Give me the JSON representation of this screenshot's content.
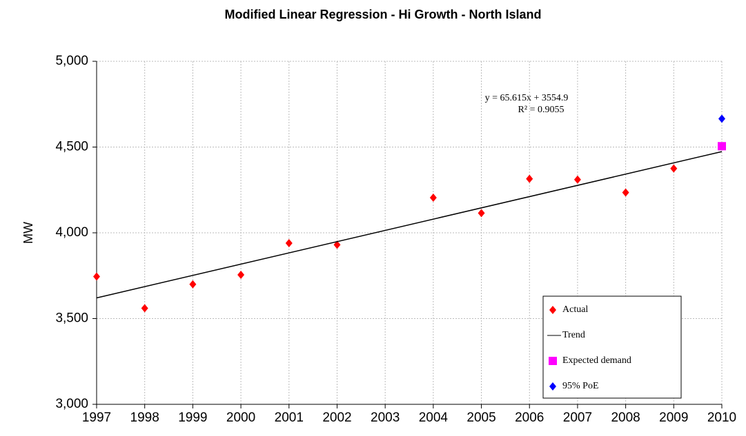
{
  "chart_data": {
    "type": "scatter",
    "title": "Modified Linear Regression - Hi Growth - North Island",
    "y_label": "MW",
    "annotations": [
      "y = 65.615x + 3554.9",
      "R² = 0.9055"
    ],
    "xlim": [
      1997,
      2010
    ],
    "xticks": [
      1997,
      1998,
      1999,
      2000,
      2001,
      2002,
      2003,
      2004,
      2005,
      2006,
      2007,
      2008,
      2009,
      2010
    ],
    "ylim": [
      3000,
      5000
    ],
    "yticks": [
      {
        "value": 3000,
        "label": "3,000"
      },
      {
        "value": 3500,
        "label": "3,500"
      },
      {
        "value": 4000,
        "label": "4,000"
      },
      {
        "value": 4500,
        "label": "4,500"
      },
      {
        "value": 5000,
        "label": "5,000"
      }
    ],
    "grid": true,
    "legend": "lower right",
    "series": [
      {
        "name": "Actual",
        "color": "#ff0000",
        "mode": "markers",
        "marker": "diamond",
        "x": [
          1997,
          1998,
          1999,
          2000,
          2001,
          2002,
          2004,
          2005,
          2006,
          2007,
          2008,
          2009
        ],
        "values": [
          3745,
          3560,
          3700,
          3755,
          3940,
          3930,
          4205,
          4115,
          4315,
          4310,
          4235,
          4375
        ]
      },
      {
        "name": "Trend",
        "color": "#000000",
        "mode": "line",
        "x": [
          1997,
          2010
        ],
        "values": [
          3620.5,
          4473.5
        ]
      },
      {
        "name": "Expected demand",
        "color": "#ff00ff",
        "mode": "markers",
        "marker": "square",
        "x": [
          2010
        ],
        "values": [
          4505
        ]
      },
      {
        "name": "95% PoE",
        "color": "#0000ff",
        "mode": "markers",
        "marker": "diamond",
        "x": [
          2010
        ],
        "values": [
          4665
        ]
      }
    ]
  }
}
